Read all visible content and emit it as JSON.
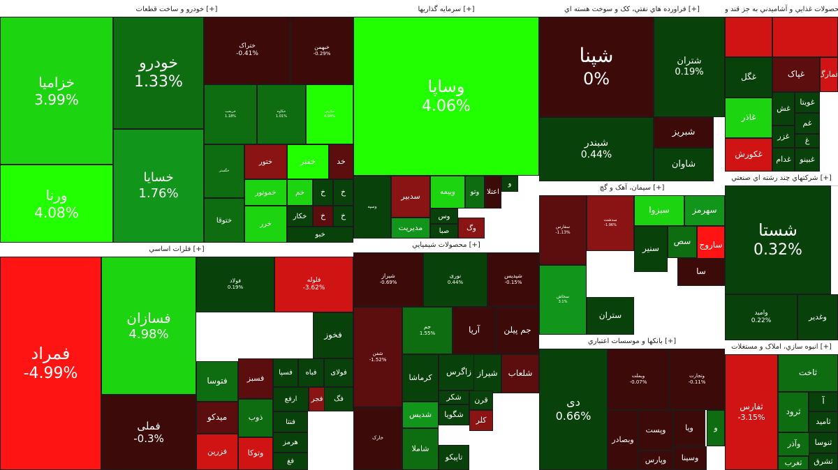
{
  "colors": {
    "g5": "#22ff00",
    "g4": "#1cd40f",
    "g3": "#12951b",
    "g2": "#0e6d10",
    "g1": "#08420a",
    "r1": "#3d0a0a",
    "r2": "#5c0d0d",
    "r3": "#8a1313",
    "r4": "#d01414",
    "r5": "#ff1414"
  },
  "chart_data": {
    "type": "treemap",
    "sectors": [
      {
        "title": "خودرو و ساخت قطعات [+]",
        "tiles": [
          {
            "name": "خزامیا",
            "pct": "3.99%",
            "value": 3.99,
            "color": "g4"
          },
          {
            "name": "ورنا",
            "pct": "4.08%",
            "value": 4.08,
            "color": "g5"
          },
          {
            "name": "خودرو",
            "pct": "1.33%",
            "value": 1.33,
            "color": "g2"
          },
          {
            "name": "خسایا",
            "pct": "1.76%",
            "value": 1.76,
            "color": "g3"
          },
          {
            "name": "ختراک",
            "pct": "-0.41%",
            "value": -0.41,
            "color": "r1"
          },
          {
            "name": "خبهمن",
            "pct": "-0.29%",
            "value": -0.29,
            "color": "r1"
          },
          {
            "name": "خریخت",
            "pct": "1.18%",
            "value": 1.18,
            "color": "g2"
          },
          {
            "name": "خکاوه",
            "pct": "1.01%",
            "value": 1.01,
            "color": "g2"
          },
          {
            "name": "خپارس",
            "pct": "4.94%",
            "value": 4.94,
            "color": "g5"
          },
          {
            "name": "خگستر",
            "pct": "",
            "value": null,
            "color": "g2"
          },
          {
            "name": "ختور",
            "pct": "",
            "value": null,
            "color": "r3"
          },
          {
            "name": "خفنر",
            "pct": "",
            "value": null,
            "color": "g5"
          },
          {
            "name": "خد",
            "pct": "",
            "value": null,
            "color": "r2"
          },
          {
            "name": "ختوقا",
            "pct": "",
            "value": null,
            "color": "g2"
          },
          {
            "name": "خموتور",
            "pct": "",
            "value": null,
            "color": "g4"
          },
          {
            "name": "خم",
            "pct": "",
            "value": null,
            "color": "g4"
          },
          {
            "name": "خ",
            "pct": "",
            "value": null,
            "color": "g1"
          },
          {
            "name": "خ",
            "pct": "",
            "value": null,
            "color": "g1"
          },
          {
            "name": "خرر",
            "pct": "",
            "value": null,
            "color": "g4"
          },
          {
            "name": "خکار",
            "pct": "",
            "value": null,
            "color": "g1"
          },
          {
            "name": "خ",
            "pct": "",
            "value": null,
            "color": "r2"
          },
          {
            "name": "خ",
            "pct": "",
            "value": null,
            "color": "g1"
          },
          {
            "name": "خبو",
            "pct": "",
            "value": null,
            "color": "g1"
          }
        ]
      },
      {
        "title": "سرمایه گذاریها [+]",
        "tiles": [
          {
            "name": "وساپا",
            "pct": "4.06%",
            "value": 4.06,
            "color": "g5"
          },
          {
            "name": "وسپه",
            "pct": "",
            "value": null,
            "color": "g1"
          },
          {
            "name": "سدبیر",
            "pct": "",
            "value": null,
            "color": "r3"
          },
          {
            "name": "وبیمه",
            "pct": "",
            "value": null,
            "color": "g4"
          },
          {
            "name": "وتو",
            "pct": "",
            "value": null,
            "color": "g2"
          },
          {
            "name": "اعتلا",
            "pct": "",
            "value": null,
            "color": "r1"
          },
          {
            "name": "و",
            "pct": "",
            "value": null,
            "color": "g1"
          },
          {
            "name": "مدیریت",
            "pct": "",
            "value": null,
            "color": "g3"
          },
          {
            "name": "وس",
            "pct": "",
            "value": null,
            "color": "g1"
          },
          {
            "name": "صبا",
            "pct": "",
            "value": null,
            "color": "g1"
          },
          {
            "name": "وگ",
            "pct": "",
            "value": null,
            "color": "r3"
          }
        ]
      },
      {
        "title": "فراورده هاي نفتي، کک و سوخت هسته اي [+]",
        "tiles": [
          {
            "name": "شپنا",
            "pct": "0%",
            "value": 0,
            "color": "r1"
          },
          {
            "name": "شتران",
            "pct": "0.19%",
            "value": 0.19,
            "color": "g1"
          },
          {
            "name": "شبندر",
            "pct": "0.44%",
            "value": 0.44,
            "color": "g1"
          },
          {
            "name": "شبریز",
            "pct": "",
            "value": null,
            "color": "r1"
          },
          {
            "name": "شاوان",
            "pct": "",
            "value": null,
            "color": "g1"
          }
        ]
      },
      {
        "title": "محصولات غذايي و آشاميدني به جز قند و [+]",
        "tiles": [
          {
            "name": "",
            "pct": "",
            "value": null,
            "color": "r4"
          },
          {
            "name": "",
            "pct": "",
            "value": null,
            "color": "r4"
          },
          {
            "name": "غگل",
            "pct": "",
            "value": null,
            "color": "g1"
          },
          {
            "name": "غپاک",
            "pct": "",
            "value": null,
            "color": "r2"
          },
          {
            "name": "غمارگ",
            "pct": "",
            "value": null,
            "color": "r4"
          },
          {
            "name": "غاذر",
            "pct": "",
            "value": null,
            "color": "g4"
          },
          {
            "name": "غش",
            "pct": "",
            "value": null,
            "color": "g1"
          },
          {
            "name": "غویتا",
            "pct": "",
            "value": null,
            "color": "g1"
          },
          {
            "name": "غزر",
            "pct": "",
            "value": null,
            "color": "g1"
          },
          {
            "name": "غم",
            "pct": "",
            "value": null,
            "color": "g1"
          },
          {
            "name": "غکورش",
            "pct": "",
            "value": null,
            "color": "r4"
          },
          {
            "name": "غدام",
            "pct": "",
            "value": null,
            "color": "g1"
          },
          {
            "name": "غبینو",
            "pct": "",
            "value": null,
            "color": "g1"
          },
          {
            "name": "غ",
            "pct": "",
            "value": null,
            "color": "g1"
          }
        ]
      },
      {
        "title": "شرکتهاي چند رشته اي صنعتي [+]",
        "tiles": [
          {
            "name": "شستا",
            "pct": "0.32%",
            "value": 0.32,
            "color": "g1"
          },
          {
            "name": "وامید",
            "pct": "0.22%",
            "value": 0.22,
            "color": "g1"
          },
          {
            "name": "وغدیر",
            "pct": "",
            "value": null,
            "color": "g1"
          }
        ]
      },
      {
        "title": "فلزات اساسي [+]",
        "tiles": [
          {
            "name": "فمراد",
            "pct": "-4.99%",
            "value": -4.99,
            "color": "r5"
          },
          {
            "name": "فسازان",
            "pct": "4.98%",
            "value": 4.98,
            "color": "g4"
          },
          {
            "name": "فملی",
            "pct": "-0.3%",
            "value": -0.3,
            "color": "r1"
          },
          {
            "name": "فولاد",
            "pct": "0.19%",
            "value": 0.19,
            "color": "g1"
          },
          {
            "name": "فخوز",
            "pct": "",
            "value": null,
            "color": "g1"
          },
          {
            "name": "فتوسا",
            "pct": "",
            "value": null,
            "color": "g2"
          },
          {
            "name": "فسبز",
            "pct": "",
            "value": null,
            "color": "r2"
          },
          {
            "name": "میدکو",
            "pct": "",
            "value": null,
            "color": "r2"
          },
          {
            "name": "ذوب",
            "pct": "",
            "value": null,
            "color": "g2"
          },
          {
            "name": "فزرین",
            "pct": "",
            "value": null,
            "color": "r4"
          },
          {
            "name": "وتوکا",
            "pct": "",
            "value": null,
            "color": "r4"
          },
          {
            "name": "فلوله",
            "pct": "-3.62%",
            "value": -3.62,
            "color": "r4"
          },
          {
            "name": "فسپا",
            "pct": "",
            "value": null,
            "color": "g1"
          },
          {
            "name": "فباه",
            "pct": "",
            "value": null,
            "color": "g1"
          },
          {
            "name": "فولای",
            "pct": "",
            "value": null,
            "color": "g1"
          },
          {
            "name": "ارفع",
            "pct": "",
            "value": null,
            "color": "g1"
          },
          {
            "name": "فجر",
            "pct": "",
            "value": null,
            "color": "r3"
          },
          {
            "name": "فگ",
            "pct": "",
            "value": null,
            "color": "g1"
          },
          {
            "name": "فنتا",
            "pct": "",
            "value": null,
            "color": "g1"
          },
          {
            "name": "هرمز",
            "pct": "",
            "value": null,
            "color": "g1"
          },
          {
            "name": "فغ",
            "pct": "",
            "value": null,
            "color": "g1"
          }
        ]
      },
      {
        "title": "محصولات شيميايي [+]",
        "tiles": [
          {
            "name": "شیراز",
            "pct": "-0.69%",
            "value": -0.69,
            "color": "r1"
          },
          {
            "name": "نوری",
            "pct": "0.44%",
            "value": 0.44,
            "color": "g1"
          },
          {
            "name": "شپدیس",
            "pct": "-0.15%",
            "value": -0.15,
            "color": "r1"
          },
          {
            "name": "جم",
            "pct": "1.55%",
            "value": 1.55,
            "color": "g2"
          },
          {
            "name": "آریا",
            "pct": "",
            "value": null,
            "color": "r1"
          },
          {
            "name": "جم پیلن",
            "pct": "",
            "value": null,
            "color": "r1"
          },
          {
            "name": "کرماشا",
            "pct": "",
            "value": null,
            "color": "g1"
          },
          {
            "name": "زاگرس",
            "pct": "",
            "value": null,
            "color": "g1"
          },
          {
            "name": "شیراز",
            "pct": "",
            "value": null,
            "color": "g1"
          },
          {
            "name": "شلعاب",
            "pct": "",
            "value": null,
            "color": "r2"
          },
          {
            "name": "شکر",
            "pct": "",
            "value": null,
            "color": "g1"
          },
          {
            "name": "قرن",
            "pct": "",
            "value": null,
            "color": "g1"
          },
          {
            "name": "شگویا",
            "pct": "",
            "value": null,
            "color": "g1"
          },
          {
            "name": "کلر",
            "pct": "",
            "value": null,
            "color": "r3"
          },
          {
            "name": "شدیس",
            "pct": "",
            "value": null,
            "color": "g3"
          },
          {
            "name": "شاملا",
            "pct": "",
            "value": null,
            "color": "g2"
          },
          {
            "name": "تاپیکو",
            "pct": "",
            "value": null,
            "color": "g1"
          },
          {
            "name": "شفن",
            "pct": "-1.52%",
            "value": -1.52,
            "color": "r2"
          },
          {
            "name": "خارک",
            "pct": "",
            "value": null,
            "color": "r1"
          }
        ]
      },
      {
        "title": "سيمان، آهک و گچ [+]",
        "tiles": [
          {
            "name": "سهرمز",
            "pct": "",
            "value": null,
            "color": "g3"
          },
          {
            "name": "سبزوا",
            "pct": "",
            "value": null,
            "color": "g4"
          },
          {
            "name": "ساروج",
            "pct": "",
            "value": null,
            "color": "r5"
          },
          {
            "name": "سنیر",
            "pct": "",
            "value": null,
            "color": "g1"
          },
          {
            "name": "سص",
            "pct": "",
            "value": null,
            "color": "g2"
          },
          {
            "name": "سا",
            "pct": "",
            "value": null,
            "color": "r1"
          },
          {
            "name": "ستران",
            "pct": "",
            "value": null,
            "color": "g1"
          },
          {
            "name": "سفارس",
            "pct": "-1.13%",
            "value": -1.13,
            "color": "r2"
          },
          {
            "name": "سدشت",
            "pct": "-1.96%",
            "value": -1.96,
            "color": "r3"
          },
          {
            "name": "سخاش",
            "pct": "3.1%",
            "value": 3.1,
            "color": "g3"
          }
        ]
      },
      {
        "title": "بانکها و موسسات اعتباري [+]",
        "tiles": [
          {
            "name": "دی",
            "pct": "0.66%",
            "value": 0.66,
            "color": "g1"
          },
          {
            "name": "وبملت",
            "pct": "-0.07%",
            "value": -0.07,
            "color": "r1"
          },
          {
            "name": "وتجارت",
            "pct": "-0.11%",
            "value": -0.11,
            "color": "r1"
          },
          {
            "name": "وبصادر",
            "pct": "",
            "value": null,
            "color": "r1"
          },
          {
            "name": "وپست",
            "pct": "",
            "value": null,
            "color": "r1"
          },
          {
            "name": "وپارس",
            "pct": "",
            "value": null,
            "color": "r1"
          },
          {
            "name": "ویا",
            "pct": "",
            "value": null,
            "color": "r1"
          },
          {
            "name": "وسینا",
            "pct": "",
            "value": null,
            "color": "r1"
          },
          {
            "name": "و",
            "pct": "",
            "value": null,
            "color": "g2"
          }
        ]
      },
      {
        "title": "انبوه سازي، املاک و مستغلات [+]",
        "tiles": [
          {
            "name": "ثفارس",
            "pct": "-3.15%",
            "value": -3.15,
            "color": "r4"
          },
          {
            "name": "ثاخت",
            "pct": "",
            "value": null,
            "color": "g2"
          },
          {
            "name": "ثرود",
            "pct": "",
            "value": null,
            "color": "g2"
          },
          {
            "name": "آ",
            "pct": "",
            "value": null,
            "color": "g1"
          },
          {
            "name": "ثامید",
            "pct": "",
            "value": null,
            "color": "g1"
          },
          {
            "name": "وآذر",
            "pct": "",
            "value": null,
            "color": "g2"
          },
          {
            "name": "ثنوسا",
            "pct": "",
            "value": null,
            "color": "g1"
          },
          {
            "name": "ثشرق",
            "pct": "",
            "value": null,
            "color": "g1"
          },
          {
            "name": "ثغرب",
            "pct": "",
            "value": null,
            "color": "g2"
          }
        ]
      }
    ]
  }
}
